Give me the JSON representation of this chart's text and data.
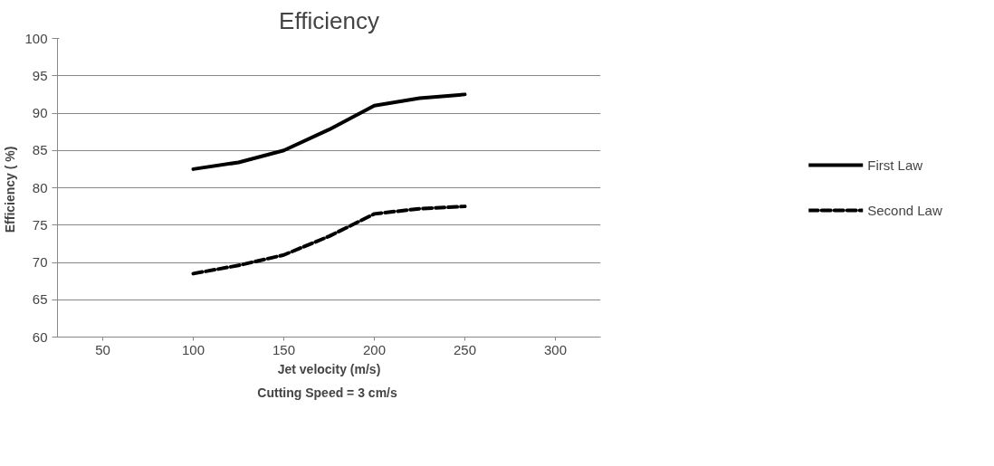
{
  "chart_data": {
    "type": "line",
    "title": "Efficiency",
    "xlabel": "Jet velocity (m/s)",
    "ylabel": "Efficiency  ( %)",
    "annotations": [
      "Cutting Speed  = 3 cm/s"
    ],
    "x": [
      100,
      125,
      150,
      175,
      200,
      225,
      250
    ],
    "series": [
      {
        "name": "First Law",
        "color": "#000000",
        "line_style": "solid",
        "values": [
          82.5,
          83.4,
          85,
          87.8,
          91,
          92,
          92.5
        ]
      },
      {
        "name": "Second Law",
        "color": "#000000",
        "line_style": "dashed",
        "values": [
          68.5,
          69.6,
          71,
          73.5,
          76.5,
          77.2,
          77.5
        ]
      }
    ],
    "xlim": [
      25,
      325
    ],
    "xticks": [
      50,
      100,
      150,
      200,
      250,
      300
    ],
    "ylim": [
      60,
      100
    ],
    "yticks": [
      60,
      65,
      70,
      75,
      80,
      85,
      90,
      95,
      100
    ],
    "grid": "y",
    "legend": "right",
    "marker": "none"
  }
}
